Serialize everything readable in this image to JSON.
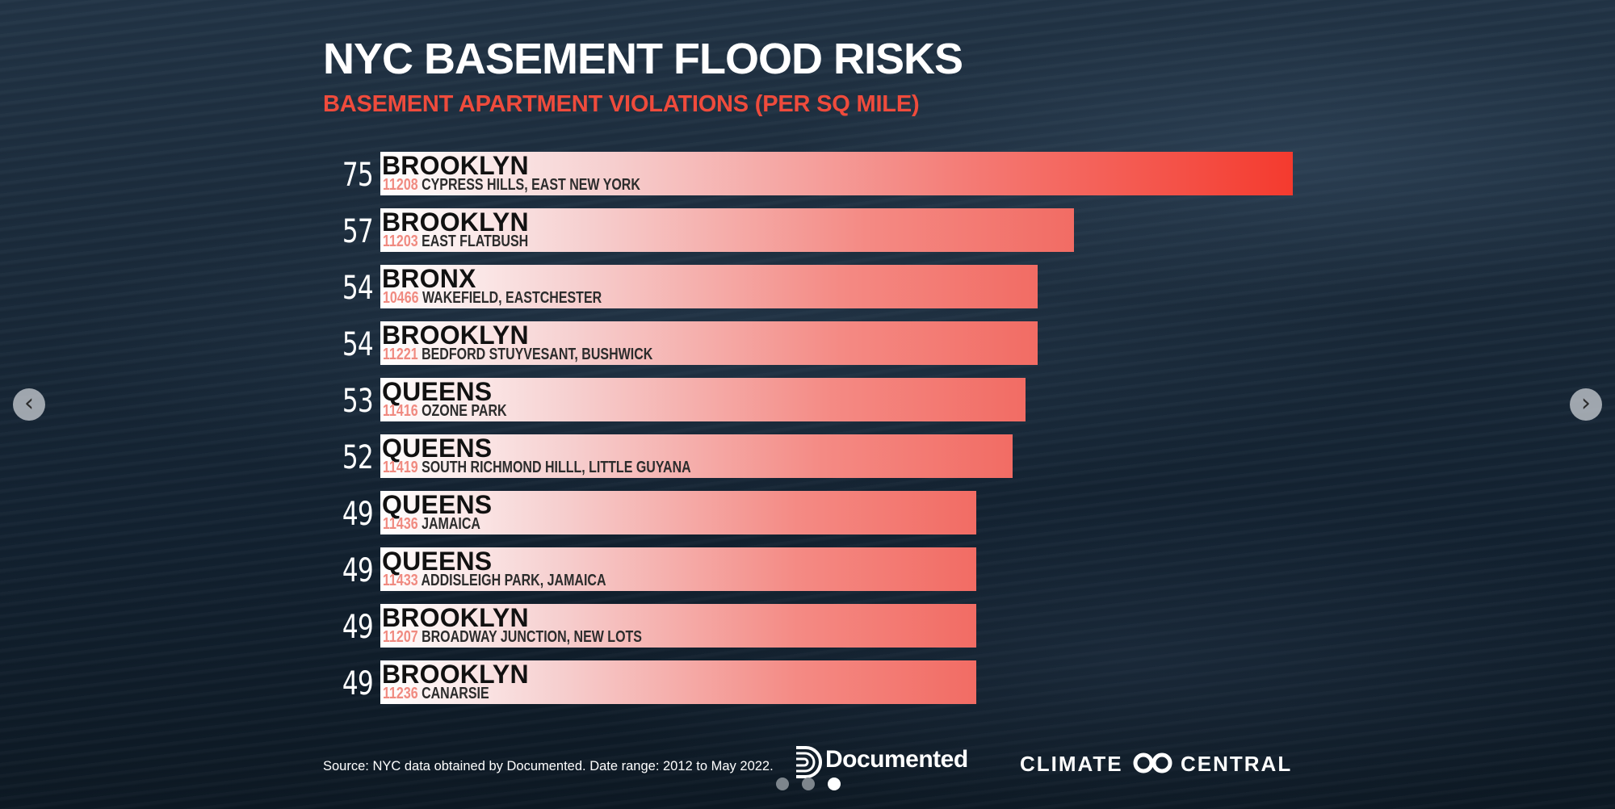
{
  "title": "NYC BASEMENT FLOOD RISKS",
  "subtitle": "BASEMENT APARTMENT VIOLATIONS (PER SQ MILE)",
  "source": "Source: NYC data obtained by Documented. Date range: 2012 to May 2022.",
  "logos": {
    "documented": "Documented",
    "climate_central_a": "CLIMATE",
    "climate_central_b": "CENTRAL"
  },
  "carousel": {
    "prev_icon": "chevron-left-icon",
    "next_icon": "chevron-right-icon",
    "slide_count": 3,
    "active_slide": 3
  },
  "colors": {
    "title": "#ffffff",
    "subtitle": "#ef4b3c",
    "bar_start": "#ffffff",
    "bar_end": "#f26c64",
    "top_bar_end": "#f43a2e",
    "zip": "#f08a80"
  },
  "chart_data": {
    "type": "bar",
    "orientation": "horizontal",
    "title": "NYC BASEMENT FLOOD RISKS",
    "subtitle": "BASEMENT APARTMENT VIOLATIONS (PER SQ MILE)",
    "xlim": [
      0,
      75
    ],
    "rows": [
      {
        "value": 75,
        "borough": "BROOKLYN",
        "zip": "11208",
        "area": "CYPRESS HILLS, EAST NEW YORK"
      },
      {
        "value": 57,
        "borough": "BROOKLYN",
        "zip": "11203",
        "area": "EAST FLATBUSH"
      },
      {
        "value": 54,
        "borough": "BRONX",
        "zip": "10466",
        "area": "WAKEFIELD, EASTCHESTER"
      },
      {
        "value": 54,
        "borough": "BROOKLYN",
        "zip": "11221",
        "area": "BEDFORD STUYVESANT, BUSHWICK"
      },
      {
        "value": 53,
        "borough": "QUEENS",
        "zip": "11416",
        "area": "OZONE PARK"
      },
      {
        "value": 52,
        "borough": "QUEENS",
        "zip": "11419",
        "area": "SOUTH RICHMOND HILLL, LITTLE GUYANA"
      },
      {
        "value": 49,
        "borough": "QUEENS",
        "zip": "11436",
        "area": "JAMAICA"
      },
      {
        "value": 49,
        "borough": "QUEENS",
        "zip": "11433",
        "area": "ADDISLEIGH PARK, JAMAICA"
      },
      {
        "value": 49,
        "borough": "BROOKLYN",
        "zip": "11207",
        "area": "BROADWAY JUNCTION, NEW LOTS"
      },
      {
        "value": 49,
        "borough": "BROOKLYN",
        "zip": "11236",
        "area": "CANARSIE"
      }
    ]
  }
}
